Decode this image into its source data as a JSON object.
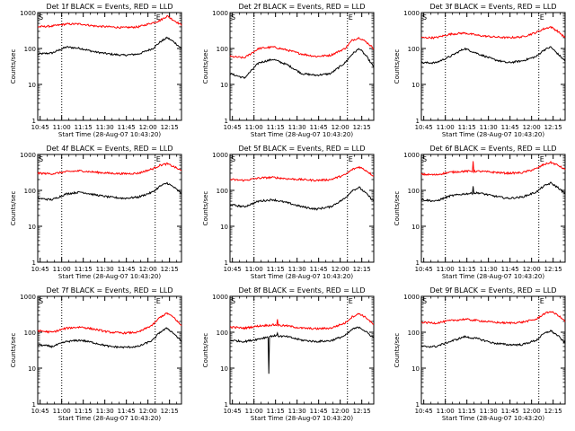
{
  "common": {
    "x_tick_labels": [
      "10:45",
      "11:00",
      "11:15",
      "11:30",
      "11:45",
      "12:00",
      "12:15"
    ],
    "y_tick_labels": [
      "1",
      "10",
      "100",
      "1000"
    ],
    "ylabel": "Counts/sec",
    "xlabel": "Start Time (28-Aug-07 10:43:20)",
    "marker_S": "S",
    "marker_E": "E",
    "colors": {
      "events": "#000000",
      "lld": "#ff0000",
      "frame": "#000000"
    }
  },
  "chart_data": [
    {
      "type": "line",
      "title": "Det 1f BLACK = Events, RED = LLD",
      "xlabel": "Start Time (28-Aug-07 10:43:20)",
      "ylabel": "Counts/sec",
      "x_unit": "minutes since 10:43:20",
      "xlim": [
        0,
        100
      ],
      "ylim": [
        1,
        1000
      ],
      "yscale": "log",
      "vlines_minutes": [
        16.7,
        81.7
      ],
      "x": [
        0,
        10,
        20,
        30,
        40,
        50,
        60,
        70,
        80,
        85,
        90,
        95,
        100
      ],
      "series": [
        {
          "name": "Events",
          "color": "#000000",
          "values": [
            70,
            75,
            110,
            100,
            80,
            70,
            65,
            70,
            100,
            150,
            200,
            150,
            100
          ]
        },
        {
          "name": "LLD",
          "color": "#ff0000",
          "values": [
            400,
            420,
            480,
            480,
            420,
            400,
            380,
            400,
            520,
            600,
            800,
            600,
            450
          ]
        }
      ]
    },
    {
      "type": "line",
      "title": "Det 2f BLACK = Events, RED = LLD",
      "xlabel": "Start Time (28-Aug-07 10:43:20)",
      "ylabel": "Counts/sec",
      "x_unit": "minutes since 10:43:20",
      "xlim": [
        0,
        100
      ],
      "ylim": [
        1,
        1000
      ],
      "yscale": "log",
      "vlines_minutes": [
        16.7,
        81.7
      ],
      "x": [
        0,
        10,
        20,
        30,
        40,
        50,
        60,
        70,
        80,
        85,
        90,
        95,
        100
      ],
      "series": [
        {
          "name": "Events",
          "color": "#000000",
          "values": [
            20,
            15,
            40,
            50,
            35,
            20,
            18,
            20,
            40,
            70,
            100,
            60,
            30
          ]
        },
        {
          "name": "LLD",
          "color": "#ff0000",
          "values": [
            60,
            55,
            100,
            110,
            90,
            70,
            60,
            65,
            100,
            170,
            200,
            150,
            100
          ]
        }
      ]
    },
    {
      "type": "line",
      "title": "Det 3f BLACK = Events, RED = LLD",
      "xlabel": "Start Time (28-Aug-07 10:43:20)",
      "ylabel": "Counts/sec",
      "x_unit": "minutes since 10:43:20",
      "xlim": [
        0,
        100
      ],
      "ylim": [
        1,
        1000
      ],
      "yscale": "log",
      "vlines_minutes": [
        16.7,
        81.7
      ],
      "x": [
        0,
        10,
        20,
        30,
        40,
        50,
        60,
        70,
        80,
        85,
        90,
        95,
        100
      ],
      "series": [
        {
          "name": "Events",
          "color": "#000000",
          "values": [
            40,
            40,
            60,
            100,
            70,
            50,
            40,
            45,
            60,
            90,
            110,
            70,
            45
          ]
        },
        {
          "name": "LLD",
          "color": "#ff0000",
          "values": [
            200,
            200,
            250,
            270,
            230,
            210,
            200,
            210,
            280,
            350,
            400,
            300,
            200
          ]
        }
      ]
    },
    {
      "type": "line",
      "title": "Det 4f BLACK = Events, RED = LLD",
      "xlabel": "Start Time (28-Aug-07 10:43:20)",
      "ylabel": "Counts/sec",
      "x_unit": "minutes since 10:43:20",
      "xlim": [
        0,
        100
      ],
      "ylim": [
        1,
        1000
      ],
      "yscale": "log",
      "vlines_minutes": [
        16.7,
        81.7
      ],
      "x": [
        0,
        10,
        20,
        30,
        40,
        50,
        60,
        70,
        80,
        85,
        90,
        95,
        100
      ],
      "series": [
        {
          "name": "Events",
          "color": "#000000",
          "values": [
            60,
            55,
            80,
            90,
            75,
            65,
            60,
            65,
            90,
            130,
            160,
            120,
            80
          ]
        },
        {
          "name": "LLD",
          "color": "#ff0000",
          "values": [
            300,
            290,
            330,
            350,
            320,
            300,
            290,
            300,
            400,
            500,
            550,
            450,
            350
          ]
        }
      ]
    },
    {
      "type": "line",
      "title": "Det 5f BLACK = Events, RED = LLD",
      "xlabel": "Start Time (28-Aug-07 10:43:20)",
      "ylabel": "Counts/sec",
      "x_unit": "minutes since 10:43:20",
      "xlim": [
        0,
        100
      ],
      "ylim": [
        1,
        1000
      ],
      "yscale": "log",
      "vlines_minutes": [
        16.7,
        81.7
      ],
      "x": [
        0,
        10,
        20,
        30,
        40,
        50,
        60,
        70,
        80,
        85,
        90,
        95,
        100
      ],
      "series": [
        {
          "name": "Events",
          "color": "#000000",
          "values": [
            40,
            35,
            50,
            55,
            45,
            35,
            30,
            35,
            60,
            100,
            120,
            80,
            50
          ]
        },
        {
          "name": "LLD",
          "color": "#ff0000",
          "values": [
            200,
            190,
            220,
            230,
            210,
            200,
            190,
            200,
            270,
            380,
            450,
            350,
            250
          ]
        }
      ]
    },
    {
      "type": "line",
      "title": "Det 6f BLACK = Events, RED = LLD",
      "xlabel": "Start Time (28-Aug-07 10:43:20)",
      "ylabel": "Counts/sec",
      "x_unit": "minutes since 10:43:20",
      "xlim": [
        0,
        100
      ],
      "ylim": [
        1,
        1000
      ],
      "yscale": "log",
      "vlines_minutes": [
        16.7,
        81.7
      ],
      "spike_minute": 36,
      "x": [
        0,
        10,
        20,
        30,
        40,
        50,
        60,
        70,
        80,
        85,
        90,
        95,
        100
      ],
      "series": [
        {
          "name": "Events",
          "color": "#000000",
          "values": [
            55,
            50,
            70,
            80,
            85,
            70,
            60,
            65,
            90,
            130,
            160,
            120,
            80
          ],
          "spike_value": 130
        },
        {
          "name": "LLD",
          "color": "#ff0000",
          "values": [
            280,
            270,
            320,
            340,
            340,
            320,
            300,
            310,
            400,
            520,
            600,
            500,
            380
          ],
          "spike_value": 650
        }
      ]
    },
    {
      "type": "line",
      "title": "Det 7f BLACK = Events, RED = LLD",
      "xlabel": "Start Time (28-Aug-07 10:43:20)",
      "ylabel": "Counts/sec",
      "x_unit": "minutes since 10:43:20",
      "xlim": [
        0,
        100
      ],
      "ylim": [
        1,
        1000
      ],
      "yscale": "log",
      "vlines_minutes": [
        16.7,
        81.7
      ],
      "x": [
        0,
        10,
        20,
        30,
        40,
        50,
        60,
        70,
        80,
        85,
        90,
        95,
        100
      ],
      "series": [
        {
          "name": "Events",
          "color": "#000000",
          "values": [
            45,
            40,
            55,
            60,
            50,
            40,
            38,
            40,
            60,
            100,
            130,
            90,
            55
          ]
        },
        {
          "name": "LLD",
          "color": "#ff0000",
          "values": [
            110,
            100,
            130,
            140,
            120,
            100,
            95,
            100,
            160,
            260,
            340,
            250,
            150
          ]
        }
      ]
    },
    {
      "type": "line",
      "title": "Det 8f BLACK = Events, RED = LLD",
      "xlabel": "Start Time (28-Aug-07 10:43:20)",
      "ylabel": "Counts/sec",
      "x_unit": "minutes since 10:43:20",
      "xlim": [
        0,
        100
      ],
      "ylim": [
        1,
        1000
      ],
      "yscale": "log",
      "vlines_minutes": [
        16.7,
        81.7
      ],
      "dip_minute": 27,
      "dip_value": 7,
      "spike_minute": 33,
      "x": [
        0,
        10,
        20,
        30,
        40,
        50,
        60,
        70,
        80,
        85,
        90,
        95,
        100
      ],
      "series": [
        {
          "name": "Events",
          "color": "#000000",
          "values": [
            60,
            55,
            65,
            80,
            75,
            60,
            55,
            58,
            80,
            120,
            140,
            100,
            70
          ],
          "spike_value": 95
        },
        {
          "name": "LLD",
          "color": "#ff0000",
          "values": [
            140,
            130,
            150,
            160,
            150,
            130,
            125,
            130,
            180,
            270,
            330,
            250,
            160
          ],
          "spike_value": 230
        }
      ]
    },
    {
      "type": "line",
      "title": "Det 9f BLACK = Events, RED = LLD",
      "xlabel": "Start Time (28-Aug-07 10:43:20)",
      "ylabel": "Counts/sec",
      "x_unit": "minutes since 10:43:20",
      "xlim": [
        0,
        100
      ],
      "ylim": [
        1,
        1000
      ],
      "yscale": "log",
      "vlines_minutes": [
        16.7,
        81.7
      ],
      "x": [
        0,
        10,
        20,
        30,
        40,
        50,
        60,
        70,
        80,
        85,
        90,
        95,
        100
      ],
      "series": [
        {
          "name": "Events",
          "color": "#000000",
          "values": [
            40,
            40,
            55,
            75,
            65,
            50,
            45,
            45,
            60,
            90,
            110,
            80,
            50
          ]
        },
        {
          "name": "LLD",
          "color": "#ff0000",
          "values": [
            190,
            180,
            210,
            230,
            210,
            190,
            180,
            190,
            230,
            320,
            380,
            300,
            200
          ]
        }
      ]
    }
  ]
}
